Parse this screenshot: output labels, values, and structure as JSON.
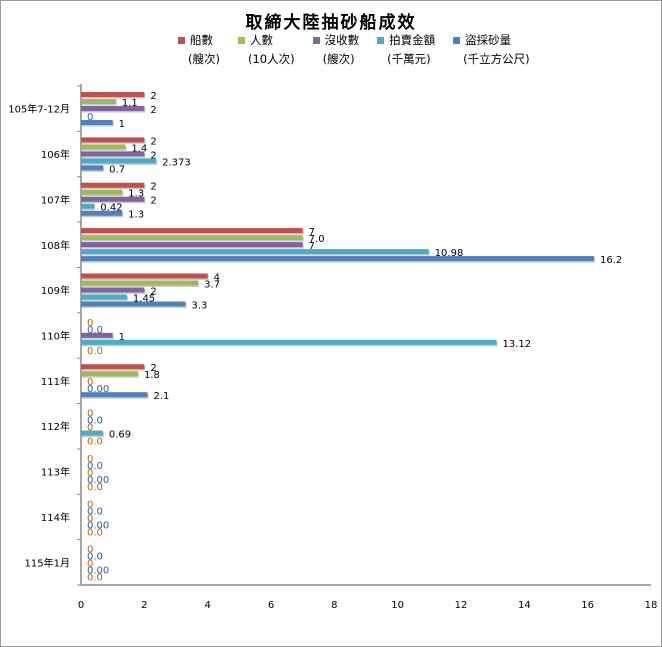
{
  "chart_data": {
    "type": "bar",
    "orientation": "horizontal",
    "title": "取締大陸抽砂船成效",
    "categories": [
      "105年7-12月",
      "106年",
      "107年",
      "108年",
      "109年",
      "110年",
      "111年",
      "112年",
      "113年",
      "114年",
      "115年1月"
    ],
    "series": [
      {
        "name": "船數",
        "unit": "(艘次)",
        "color": "#C0504D",
        "values": [
          2,
          2,
          2,
          7,
          4,
          0,
          2,
          0,
          0,
          0,
          0
        ],
        "labels": [
          "2",
          "2",
          "2",
          "7",
          "4",
          "0",
          "2",
          "0",
          "0",
          "0",
          "0"
        ]
      },
      {
        "name": "人數",
        "unit": "(10人次)",
        "color": "#9BBB59",
        "values": [
          1.1,
          1.4,
          1.3,
          7.0,
          3.7,
          0.0,
          1.8,
          0.0,
          0.0,
          0.0,
          0.0
        ],
        "labels": [
          "1.1",
          "1.4",
          "1.3",
          "7.0",
          "3.7",
          "0.0",
          "1.8",
          "0.0",
          "0.0",
          "0.0",
          "0.0"
        ]
      },
      {
        "name": "沒收數",
        "unit": "(艘次)",
        "color": "#8064A2",
        "values": [
          2,
          2,
          2,
          7,
          2,
          1,
          0,
          0,
          0,
          0,
          0
        ],
        "labels": [
          "2",
          "2",
          "2",
          "7",
          "2",
          "1",
          "0",
          "0",
          "0",
          "0",
          "0"
        ]
      },
      {
        "name": "拍賣金額",
        "unit": "(千萬元)",
        "color": "#4BACC6",
        "values": [
          0,
          2.373,
          0.42,
          10.98,
          1.45,
          13.12,
          0.0,
          0.69,
          0.0,
          0.0,
          0.0
        ],
        "labels": [
          "0",
          "2.373",
          "0.42",
          "10.98",
          "1.45",
          "13.12",
          "0.00",
          "0.69",
          "0.00",
          "0.00",
          "0.00"
        ]
      },
      {
        "name": "盜採砂量",
        "unit": "(千立方公尺)",
        "color": "#4F81BD",
        "values": [
          1,
          0.7,
          1.3,
          16.2,
          3.3,
          0.0,
          2.1,
          0.0,
          0.0,
          0.0,
          0.0
        ],
        "labels": [
          "1",
          "0.7",
          "1.3",
          "16.2",
          "3.3",
          "0.0",
          "2.1",
          "0.0",
          "0.0",
          "0.0",
          "0.0"
        ]
      }
    ],
    "xlim": [
      0,
      18
    ],
    "xticks": [
      "0",
      "2",
      "4",
      "6",
      "8",
      "10",
      "12",
      "14",
      "16",
      "18"
    ],
    "grid": false,
    "legend_position": "top"
  }
}
